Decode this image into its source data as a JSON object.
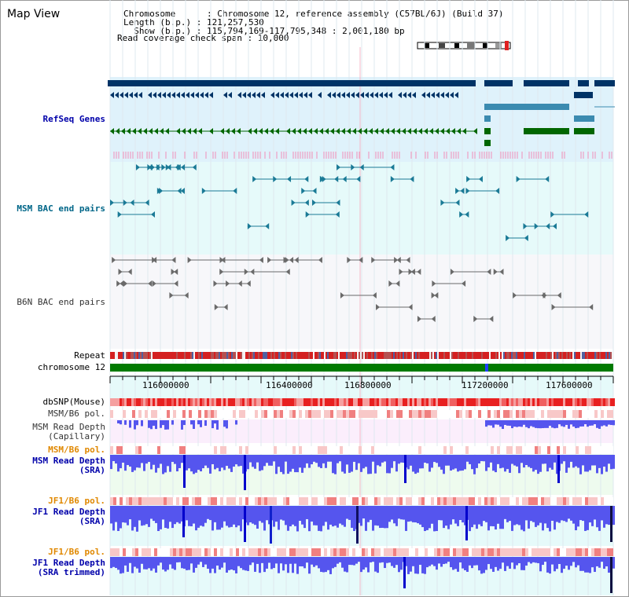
{
  "app_title": "Map View",
  "header": {
    "chromosome_line": "Chromosome      : Chromosome 12, reference assembly (C57BL/6J) (Build 37)",
    "length_line": "Length (b.p.) : 121,257,530",
    "show_line": "  Show (b.p.) : 115,794,169-117,795,348 : 2,001,180 bp",
    "read_span_line": "Read coverage check span : 10,000"
  },
  "tracks": {
    "refseq_label": "RefSeq Genes",
    "msm_bac_label": "MSM BAC end pairs",
    "b6n_bac_label": "B6N BAC end pairs",
    "repeat_label": "Repeat",
    "chromosome_label": "chromosome 12",
    "dbsnp_label": "dbSNP(Mouse)",
    "msm_b6_pol_label": "MSM/B6 pol.",
    "msm_read_depth_cap_label": "MSM Read Depth\n(Capillary)",
    "msm_b6_pol2_label": "MSM/B6 pol.",
    "msm_read_depth_sra_label": "MSM Read Depth\n(SRA)",
    "jf1_b6_pol_label": "JF1/B6 pol.",
    "jf1_read_depth_sra_label": "JF1 Read Depth\n(SRA)",
    "jf1_b6_pol2_label": "JF1/B6 pol.",
    "jf1_read_depth_trim_label": "JF1 Read Depth\n(SRA trimmed)"
  },
  "axis": {
    "ticks": [
      "116000000",
      "116400000",
      "116800000",
      "117200000",
      "117600000"
    ]
  },
  "colors": {
    "refseq_bg": "#dff2fb",
    "bac_bg": "#e6fafa",
    "b6n_bg": "#f7f7fa",
    "cap_bg": "#fbeefc",
    "sra_bg": "#eefbee",
    "jf1_bg": "#e6fafa",
    "gene_dark": "#003366",
    "gene_mid": "#3b8bb0",
    "gene_green": "#006600",
    "chrom_green": "#007a00",
    "depth_blue": "#5555ee",
    "depth_dark": "#0000cc",
    "label_blue": "#0000aa",
    "label_teal": "#006688",
    "label_orange": "#e08800"
  }
}
